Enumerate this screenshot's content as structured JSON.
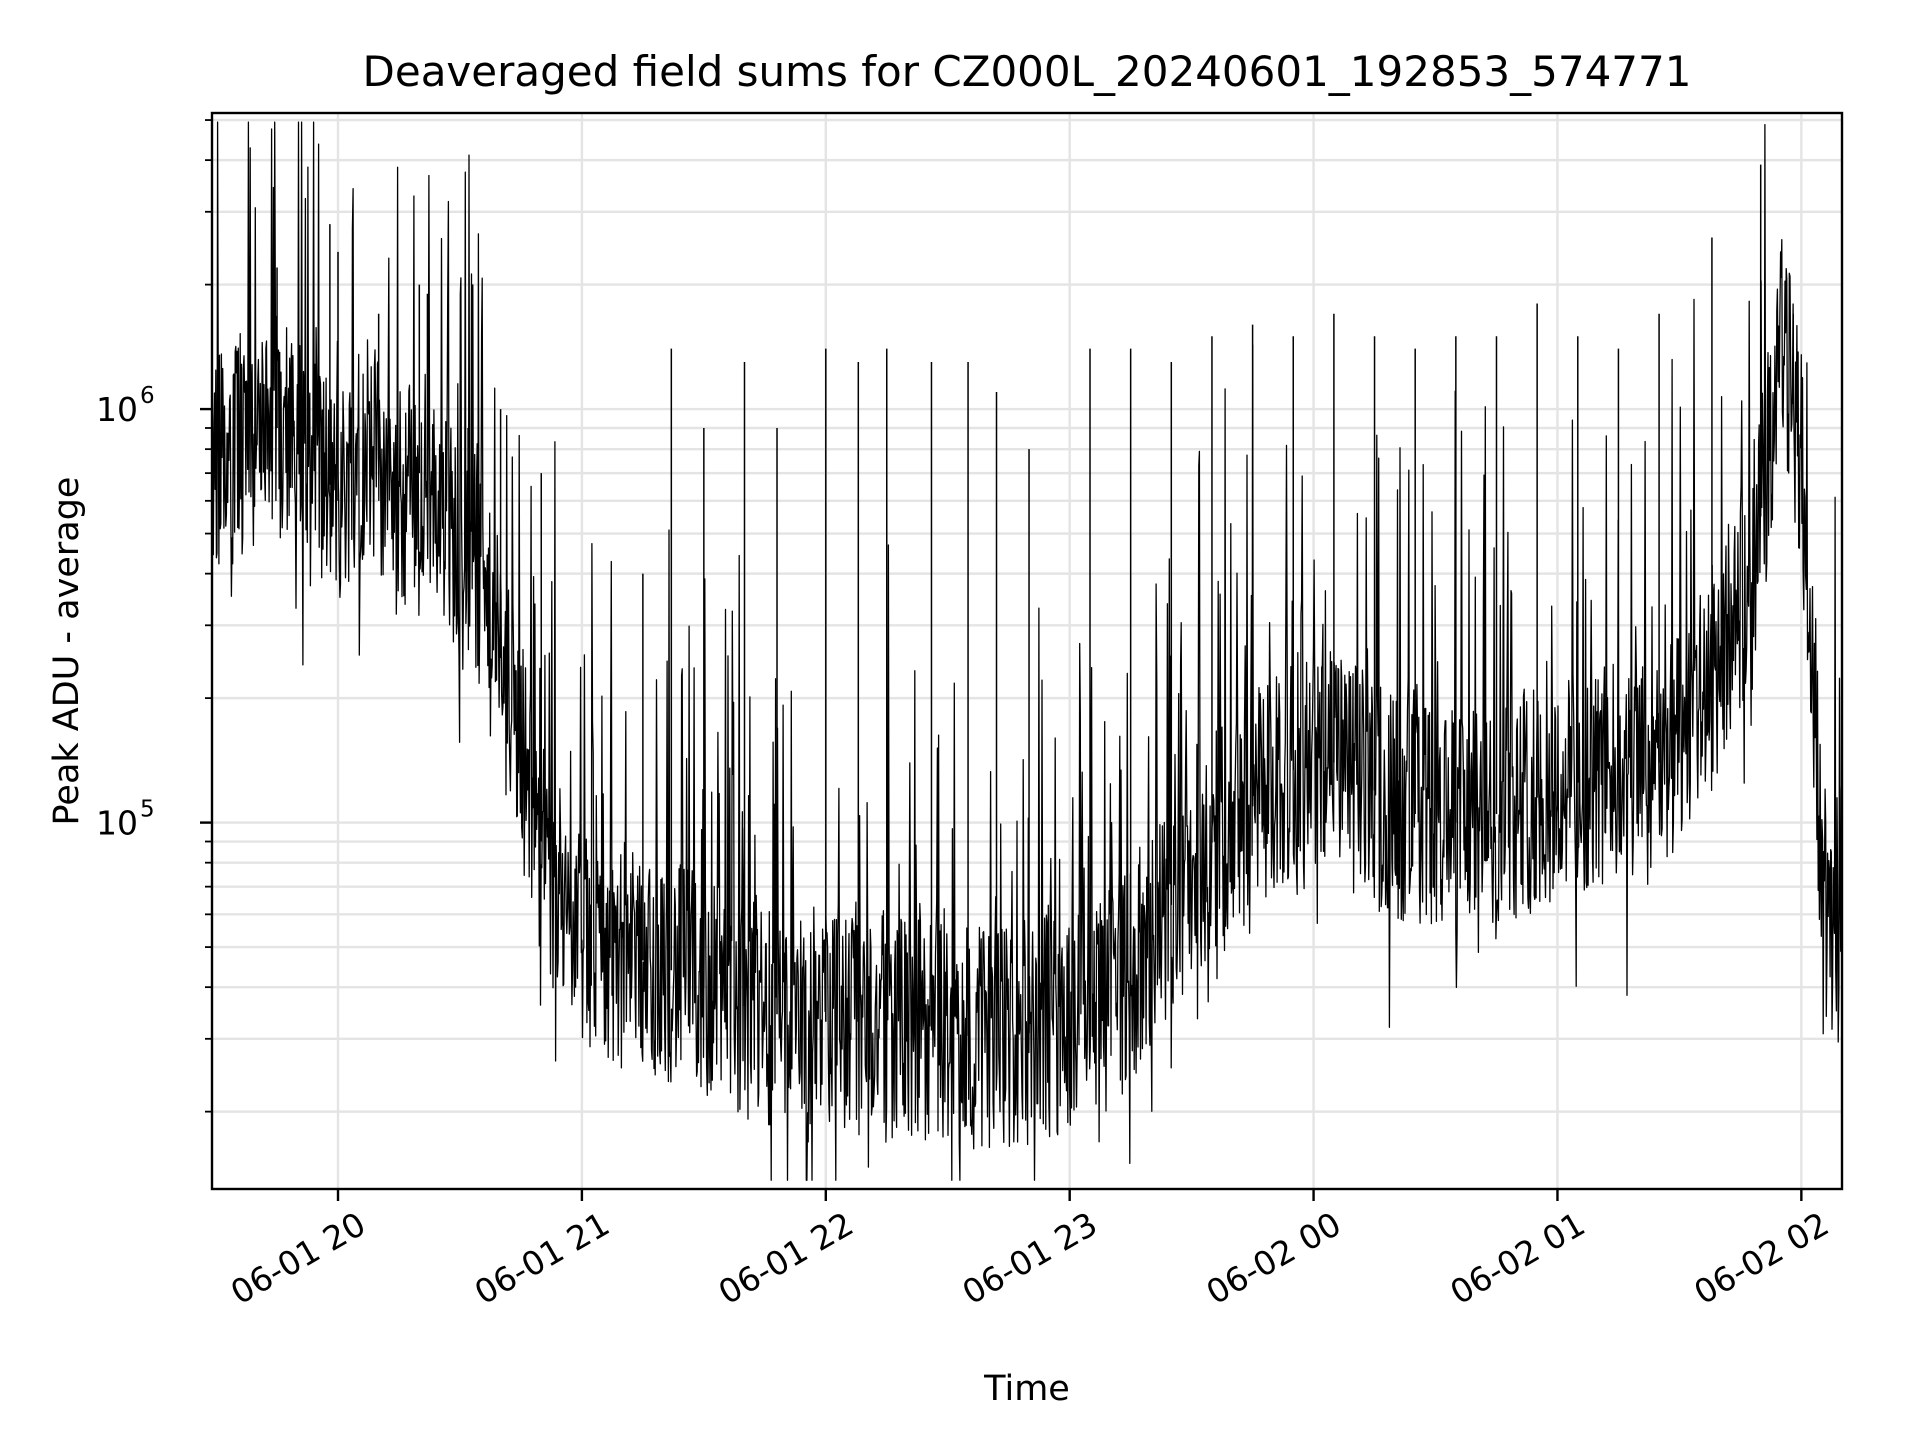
{
  "chart_data": {
    "type": "line",
    "title": "Deaveraged field sums for CZ000L_20240601_192853_574771",
    "xlabel": "Time",
    "ylabel": "Peak ADU - average",
    "yscale": "log",
    "grid": true,
    "xlim": [
      "2024-06-01 19:29",
      "2024-06-02 02:10"
    ],
    "ylim": [
      13000,
      5200000
    ],
    "x_ticks": [
      {
        "value": "2024-06-01 20:00",
        "label": "06-01 20"
      },
      {
        "value": "2024-06-01 21:00",
        "label": "06-01 21"
      },
      {
        "value": "2024-06-01 22:00",
        "label": "06-01 22"
      },
      {
        "value": "2024-06-01 23:00",
        "label": "06-01 23"
      },
      {
        "value": "2024-06-02 00:00",
        "label": "06-02 00"
      },
      {
        "value": "2024-06-02 01:00",
        "label": "06-02 01"
      },
      {
        "value": "2024-06-02 02:00",
        "label": "06-02 02"
      }
    ],
    "y_ticks": [
      {
        "value": 100000,
        "base": "10",
        "exp": "5"
      },
      {
        "value": 1000000,
        "base": "10",
        "exp": "6"
      }
    ],
    "line_color": "#000000",
    "series": [
      {
        "x": [
          "2024-06-01 19:29",
          "2024-06-01 19:35",
          "2024-06-01 19:40",
          "2024-06-01 19:45",
          "2024-06-01 19:50",
          "2024-06-01 19:55",
          "2024-06-01 20:00",
          "2024-06-01 20:05",
          "2024-06-01 20:10",
          "2024-06-01 20:15",
          "2024-06-01 20:20",
          "2024-06-01 20:25",
          "2024-06-01 20:30",
          "2024-06-01 20:35",
          "2024-06-01 20:40",
          "2024-06-01 20:45",
          "2024-06-01 20:50",
          "2024-06-01 20:55",
          "2024-06-01 21:00",
          "2024-06-01 21:10",
          "2024-06-01 21:20",
          "2024-06-01 21:30",
          "2024-06-01 21:40",
          "2024-06-01 21:50",
          "2024-06-01 22:00",
          "2024-06-01 22:10",
          "2024-06-01 22:20",
          "2024-06-01 22:30",
          "2024-06-01 22:40",
          "2024-06-01 22:50",
          "2024-06-01 23:00",
          "2024-06-01 23:10",
          "2024-06-01 23:20",
          "2024-06-01 23:30",
          "2024-06-01 23:40",
          "2024-06-01 23:50",
          "2024-06-02 00:00",
          "2024-06-02 00:10",
          "2024-06-02 00:20",
          "2024-06-02 00:30",
          "2024-06-02 00:40",
          "2024-06-02 00:50",
          "2024-06-02 01:00",
          "2024-06-02 01:10",
          "2024-06-02 01:20",
          "2024-06-02 01:30",
          "2024-06-02 01:40",
          "2024-06-02 01:45",
          "2024-06-02 01:50",
          "2024-06-02 01:55",
          "2024-06-02 02:00",
          "2024-06-02 02:03",
          "2024-06-02 02:05",
          "2024-06-02 02:08",
          "2024-06-02 02:10"
        ],
        "y": [
          700000,
          800000,
          850000,
          900000,
          850000,
          750000,
          600000,
          800000,
          750000,
          600000,
          700000,
          600000,
          450000,
          350000,
          250000,
          150000,
          90000,
          60000,
          50000,
          48000,
          45000,
          40000,
          36000,
          34000,
          33000,
          33000,
          32000,
          31000,
          30000,
          31000,
          34000,
          38000,
          50000,
          80000,
          100000,
          120000,
          150000,
          130000,
          110000,
          100000,
          100000,
          110000,
          120000,
          130000,
          130000,
          150000,
          250000,
          350000,
          550000,
          1500000,
          800000,
          200000,
          80000,
          40000,
          70000
        ]
      },
      {
        "name": "",
        "spikes": [
          {
            "x": "2024-06-01 19:38",
            "y": 2100000
          },
          {
            "x": "2024-06-01 19:45",
            "y": 2200000
          },
          {
            "x": "2024-06-01 19:58",
            "y": 2800000
          },
          {
            "x": "2024-06-01 20:00",
            "y": 2400000
          },
          {
            "x": "2024-06-01 20:10",
            "y": 1700000
          },
          {
            "x": "2024-06-01 20:20",
            "y": 2000000
          },
          {
            "x": "2024-06-01 20:22",
            "y": 1900000
          },
          {
            "x": "2024-06-01 20:32",
            "y": 900000
          },
          {
            "x": "2024-06-01 20:40",
            "y": 1000000
          },
          {
            "x": "2024-06-01 20:50",
            "y": 700000
          },
          {
            "x": "2024-06-01 21:15",
            "y": 400000
          },
          {
            "x": "2024-06-01 21:22",
            "y": 1400000
          },
          {
            "x": "2024-06-01 21:30",
            "y": 900000
          },
          {
            "x": "2024-06-01 21:40",
            "y": 1300000
          },
          {
            "x": "2024-06-01 21:48",
            "y": 900000
          },
          {
            "x": "2024-06-01 22:00",
            "y": 1400000
          },
          {
            "x": "2024-06-01 22:08",
            "y": 1300000
          },
          {
            "x": "2024-06-01 22:15",
            "y": 1400000
          },
          {
            "x": "2024-06-01 22:26",
            "y": 1300000
          },
          {
            "x": "2024-06-01 22:35",
            "y": 1300000
          },
          {
            "x": "2024-06-01 22:42",
            "y": 1100000
          },
          {
            "x": "2024-06-01 22:50",
            "y": 800000
          },
          {
            "x": "2024-06-01 23:05",
            "y": 1400000
          },
          {
            "x": "2024-06-01 23:15",
            "y": 1400000
          },
          {
            "x": "2024-06-01 23:25",
            "y": 1300000
          },
          {
            "x": "2024-06-01 23:35",
            "y": 1500000
          },
          {
            "x": "2024-06-01 23:45",
            "y": 1600000
          },
          {
            "x": "2024-06-01 23:55",
            "y": 1500000
          },
          {
            "x": "2024-06-02 00:05",
            "y": 1700000
          },
          {
            "x": "2024-06-02 00:15",
            "y": 1500000
          },
          {
            "x": "2024-06-02 00:25",
            "y": 1400000
          },
          {
            "x": "2024-06-02 00:35",
            "y": 1500000
          },
          {
            "x": "2024-06-02 00:45",
            "y": 1500000
          },
          {
            "x": "2024-06-02 00:55",
            "y": 1800000
          },
          {
            "x": "2024-06-02 01:05",
            "y": 1500000
          },
          {
            "x": "2024-06-02 01:15",
            "y": 1400000
          },
          {
            "x": "2024-06-02 01:25",
            "y": 1700000
          },
          {
            "x": "2024-06-02 01:38",
            "y": 2600000
          },
          {
            "x": "2024-06-02 01:50",
            "y": 3900000
          },
          {
            "x": "2024-06-02 01:58",
            "y": 1700000
          }
        ]
      }
    ]
  }
}
